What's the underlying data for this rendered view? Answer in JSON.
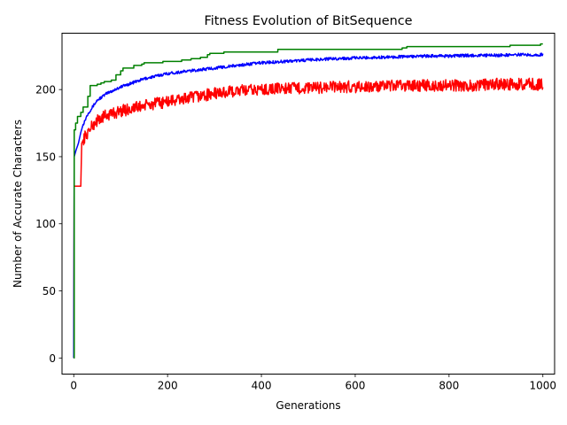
{
  "chart_data": {
    "type": "line",
    "title": "Fitness Evolution of BitSequence",
    "xlabel": "Generations",
    "ylabel": "Number of Accurate Characters",
    "xlim": [
      -25,
      1025
    ],
    "ylim": [
      -12,
      242
    ],
    "xticks": [
      0,
      200,
      400,
      600,
      800,
      1000
    ],
    "yticks": [
      0,
      50,
      100,
      150,
      200
    ],
    "grid": false,
    "legend": "none",
    "series": [
      {
        "color": "#008000",
        "points": [
          [
            0,
            0
          ],
          [
            1,
            170
          ],
          [
            4,
            175
          ],
          [
            8,
            180
          ],
          [
            15,
            183
          ],
          [
            20,
            187
          ],
          [
            30,
            195
          ],
          [
            35,
            203
          ],
          [
            50,
            204
          ],
          [
            58,
            205
          ],
          [
            65,
            206
          ],
          [
            80,
            207
          ],
          [
            90,
            211
          ],
          [
            100,
            214
          ],
          [
            105,
            216
          ],
          [
            120,
            216
          ],
          [
            128,
            218
          ],
          [
            145,
            219
          ],
          [
            150,
            220
          ],
          [
            190,
            221
          ],
          [
            230,
            222
          ],
          [
            250,
            223
          ],
          [
            270,
            224
          ],
          [
            285,
            226
          ],
          [
            290,
            227
          ],
          [
            310,
            227
          ],
          [
            320,
            228
          ],
          [
            430,
            228
          ],
          [
            435,
            230
          ],
          [
            690,
            230
          ],
          [
            700,
            231
          ],
          [
            710,
            232
          ],
          [
            920,
            232
          ],
          [
            930,
            233
          ],
          [
            995,
            234
          ],
          [
            1000,
            234
          ]
        ]
      },
      {
        "color": "#0000ff",
        "points": [
          [
            0,
            0
          ],
          [
            1,
            150
          ],
          [
            5,
            155
          ],
          [
            10,
            160
          ],
          [
            15,
            168
          ],
          [
            20,
            174
          ],
          [
            30,
            182
          ],
          [
            40,
            187
          ],
          [
            50,
            192
          ],
          [
            70,
            197
          ],
          [
            100,
            202
          ],
          [
            150,
            208
          ],
          [
            200,
            212
          ],
          [
            250,
            214
          ],
          [
            300,
            216
          ],
          [
            350,
            218
          ],
          [
            400,
            220
          ],
          [
            450,
            221
          ],
          [
            500,
            222
          ],
          [
            550,
            223
          ],
          [
            600,
            223.5
          ],
          [
            650,
            224
          ],
          [
            700,
            224.5
          ],
          [
            750,
            225
          ],
          [
            800,
            225
          ],
          [
            850,
            225.5
          ],
          [
            900,
            225.5
          ],
          [
            950,
            226
          ],
          [
            1000,
            226
          ]
        ]
      },
      {
        "color": "#ff0000",
        "points": [
          [
            0,
            0
          ],
          [
            1,
            128
          ],
          [
            15,
            128
          ],
          [
            17,
            160
          ],
          [
            22,
            164
          ],
          [
            30,
            168
          ],
          [
            40,
            173
          ],
          [
            50,
            177
          ],
          [
            70,
            181
          ],
          [
            100,
            184
          ],
          [
            150,
            188
          ],
          [
            200,
            191
          ],
          [
            250,
            194
          ],
          [
            300,
            197
          ],
          [
            350,
            199
          ],
          [
            400,
            200
          ],
          [
            450,
            201
          ],
          [
            500,
            201
          ],
          [
            550,
            202
          ],
          [
            600,
            202
          ],
          [
            650,
            202
          ],
          [
            700,
            203
          ],
          [
            750,
            203
          ],
          [
            800,
            203
          ],
          [
            850,
            203
          ],
          [
            900,
            204
          ],
          [
            950,
            204
          ],
          [
            1000,
            204
          ]
        ]
      }
    ]
  }
}
